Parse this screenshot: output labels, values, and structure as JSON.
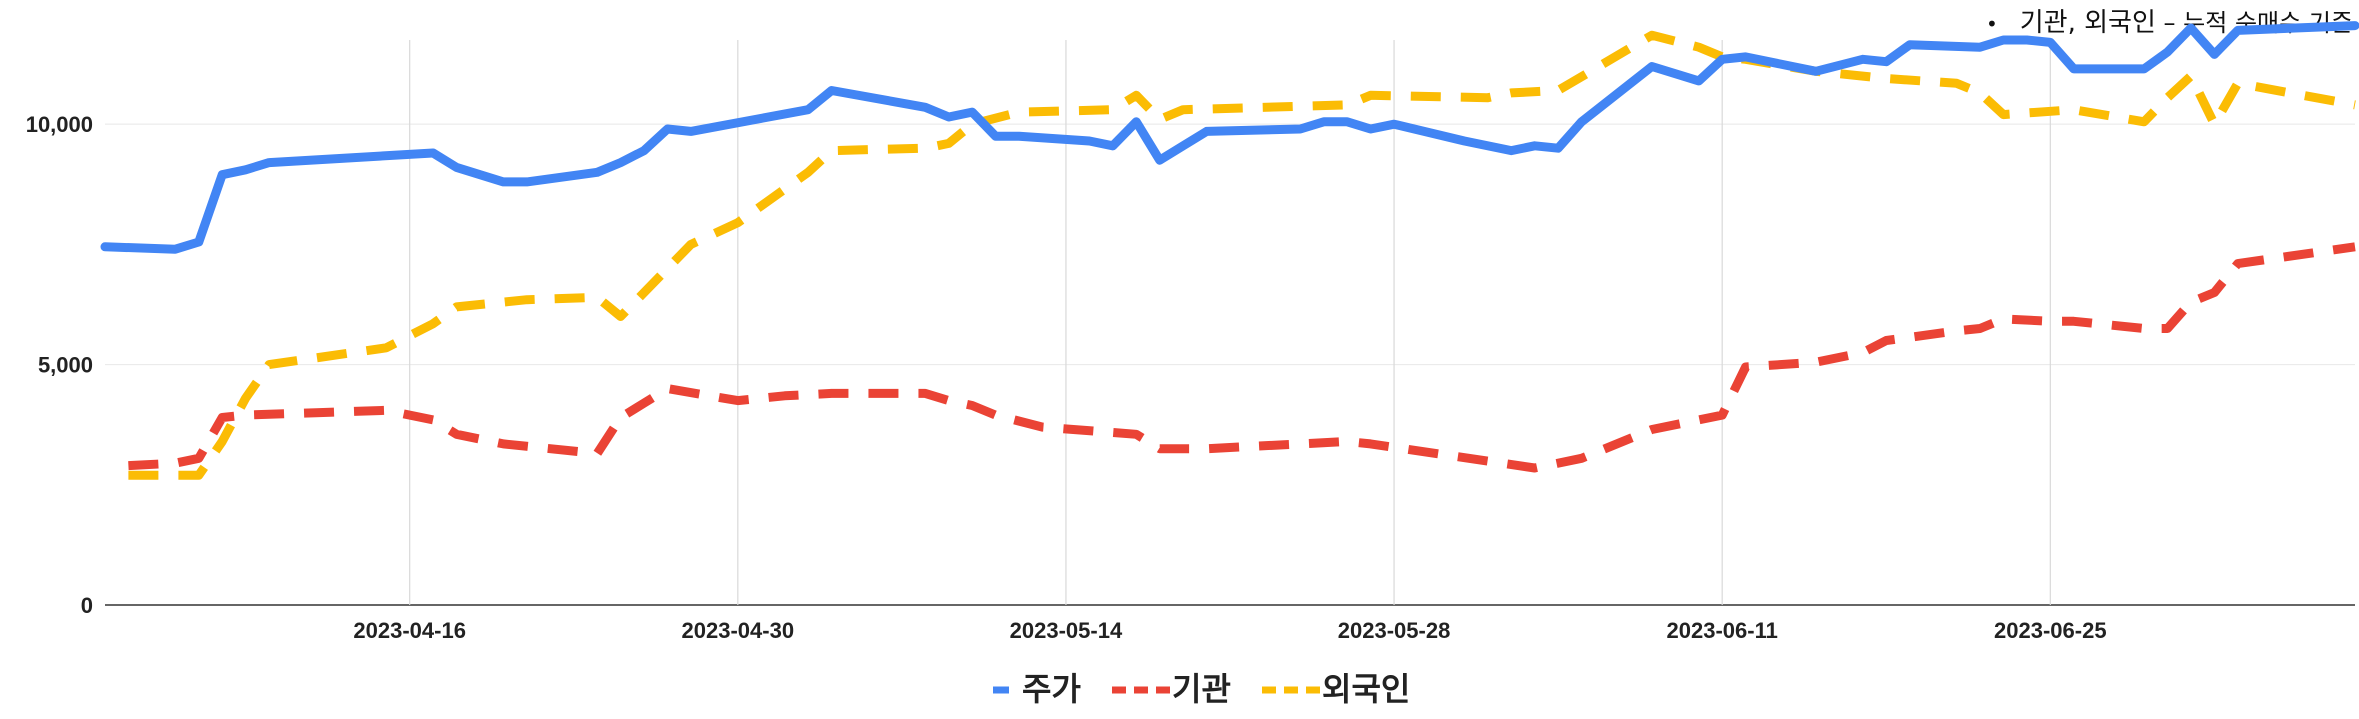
{
  "annotation": {
    "bullet": "•",
    "main": "기관, 외국인",
    "dash": " – ",
    "sub": "누적 순매수 기준"
  },
  "chart_data": {
    "type": "line",
    "ylim": [
      0,
      12000
    ],
    "yticks": [
      0,
      5000,
      10000
    ],
    "ytick_labels": [
      "0",
      "5,000",
      "10,000"
    ],
    "xlim": [
      "2023-04-03",
      "2023-07-08"
    ],
    "xticks": [
      "2023-04-16",
      "2023-04-30",
      "2023-05-14",
      "2023-05-28",
      "2023-06-11",
      "2023-06-25"
    ],
    "xtick_labels": [
      "2023-04-16",
      "2023-04-30",
      "2023-05-14",
      "2023-05-28",
      "2023-06-11",
      "2023-06-25"
    ],
    "grid": {
      "vertical": true,
      "horizontal": true
    },
    "legend_position": "bottom",
    "series": [
      {
        "name": "주가",
        "color": "#4285F4",
        "dash": "solid",
        "points": [
          [
            "2023-04-03",
            7450
          ],
          [
            "2023-04-06",
            7400
          ],
          [
            "2023-04-07",
            7550
          ],
          [
            "2023-04-08",
            8950
          ],
          [
            "2023-04-09",
            9050
          ],
          [
            "2023-04-10",
            9200
          ],
          [
            "2023-04-17",
            9400
          ],
          [
            "2023-04-18",
            9100
          ],
          [
            "2023-04-19",
            8950
          ],
          [
            "2023-04-20",
            8800
          ],
          [
            "2023-04-21",
            8800
          ],
          [
            "2023-04-24",
            9000
          ],
          [
            "2023-04-25",
            9200
          ],
          [
            "2023-04-26",
            9450
          ],
          [
            "2023-04-27",
            9900
          ],
          [
            "2023-04-28",
            9850
          ],
          [
            "2023-05-03",
            10300
          ],
          [
            "2023-05-04",
            10700
          ],
          [
            "2023-05-08",
            10350
          ],
          [
            "2023-05-09",
            10150
          ],
          [
            "2023-05-10",
            10250
          ],
          [
            "2023-05-11",
            9750
          ],
          [
            "2023-05-12",
            9750
          ],
          [
            "2023-05-15",
            9650
          ],
          [
            "2023-05-16",
            9550
          ],
          [
            "2023-05-17",
            10050
          ],
          [
            "2023-05-18",
            9250
          ],
          [
            "2023-05-19",
            9550
          ],
          [
            "2023-05-20",
            9850
          ],
          [
            "2023-05-24",
            9900
          ],
          [
            "2023-05-25",
            10050
          ],
          [
            "2023-05-26",
            10050
          ],
          [
            "2023-05-27",
            9900
          ],
          [
            "2023-05-28",
            10000
          ],
          [
            "2023-05-31",
            9650
          ],
          [
            "2023-06-02",
            9450
          ],
          [
            "2023-06-03",
            9550
          ],
          [
            "2023-06-04",
            9500
          ],
          [
            "2023-06-05",
            10050
          ],
          [
            "2023-06-08",
            11200
          ],
          [
            "2023-06-10",
            10900
          ],
          [
            "2023-06-11",
            11350
          ],
          [
            "2023-06-12",
            11400
          ],
          [
            "2023-06-15",
            11100
          ],
          [
            "2023-06-17",
            11350
          ],
          [
            "2023-06-18",
            11300
          ],
          [
            "2023-06-19",
            11650
          ],
          [
            "2023-06-22",
            11600
          ],
          [
            "2023-06-23",
            11750
          ],
          [
            "2023-06-24",
            11750
          ],
          [
            "2023-06-25",
            11700
          ],
          [
            "2023-06-26",
            11150
          ],
          [
            "2023-06-29",
            11150
          ],
          [
            "2023-06-30",
            11500
          ],
          [
            "2023-07-01",
            12000
          ],
          [
            "2023-07-02",
            11450
          ],
          [
            "2023-07-03",
            11950
          ],
          [
            "2023-07-08",
            12050
          ]
        ]
      },
      {
        "name": "기관",
        "color": "#EA4335",
        "dash": "dashed",
        "points": [
          [
            "2023-04-04",
            2900
          ],
          [
            "2023-04-06",
            2950
          ],
          [
            "2023-04-07",
            3050
          ],
          [
            "2023-04-08",
            3900
          ],
          [
            "2023-04-09",
            3950
          ],
          [
            "2023-04-12",
            4000
          ],
          [
            "2023-04-15",
            4050
          ],
          [
            "2023-04-17",
            3850
          ],
          [
            "2023-04-18",
            3550
          ],
          [
            "2023-04-19",
            3450
          ],
          [
            "2023-04-20",
            3350
          ],
          [
            "2023-04-24",
            3150
          ],
          [
            "2023-04-25",
            3900
          ],
          [
            "2023-04-26",
            4200
          ],
          [
            "2023-04-27",
            4500
          ],
          [
            "2023-04-30",
            4250
          ],
          [
            "2023-05-02",
            4350
          ],
          [
            "2023-05-04",
            4400
          ],
          [
            "2023-05-08",
            4400
          ],
          [
            "2023-05-09",
            4250
          ],
          [
            "2023-05-10",
            4150
          ],
          [
            "2023-05-11",
            3950
          ],
          [
            "2023-05-13",
            3700
          ],
          [
            "2023-05-17",
            3550
          ],
          [
            "2023-05-18",
            3250
          ],
          [
            "2023-05-20",
            3250
          ],
          [
            "2023-05-26",
            3400
          ],
          [
            "2023-05-27",
            3350
          ],
          [
            "2023-06-03",
            2850
          ],
          [
            "2023-06-05",
            3050
          ],
          [
            "2023-06-08",
            3650
          ],
          [
            "2023-06-10",
            3850
          ],
          [
            "2023-06-11",
            3950
          ],
          [
            "2023-06-12",
            4950
          ],
          [
            "2023-06-15",
            5050
          ],
          [
            "2023-06-17",
            5250
          ],
          [
            "2023-06-18",
            5500
          ],
          [
            "2023-06-21",
            5700
          ],
          [
            "2023-06-22",
            5750
          ],
          [
            "2023-06-23",
            5950
          ],
          [
            "2023-06-25",
            5900
          ],
          [
            "2023-06-26",
            5900
          ],
          [
            "2023-06-29",
            5750
          ],
          [
            "2023-06-30",
            5750
          ],
          [
            "2023-07-01",
            6300
          ],
          [
            "2023-07-02",
            6500
          ],
          [
            "2023-07-03",
            7100
          ],
          [
            "2023-07-08",
            7450
          ]
        ]
      },
      {
        "name": "외국인",
        "color": "#FBBC04",
        "dash": "dashed",
        "points": [
          [
            "2023-04-04",
            2700
          ],
          [
            "2023-04-07",
            2700
          ],
          [
            "2023-04-08",
            3400
          ],
          [
            "2023-04-09",
            4300
          ],
          [
            "2023-04-10",
            5000
          ],
          [
            "2023-04-15",
            5350
          ],
          [
            "2023-04-16",
            5600
          ],
          [
            "2023-04-17",
            5850
          ],
          [
            "2023-04-18",
            6200
          ],
          [
            "2023-04-21",
            6350
          ],
          [
            "2023-04-24",
            6400
          ],
          [
            "2023-04-25",
            6000
          ],
          [
            "2023-04-26",
            6500
          ],
          [
            "2023-04-28",
            7500
          ],
          [
            "2023-04-30",
            7950
          ],
          [
            "2023-05-03",
            9000
          ],
          [
            "2023-05-04",
            9450
          ],
          [
            "2023-05-08",
            9500
          ],
          [
            "2023-05-09",
            9600
          ],
          [
            "2023-05-10",
            10000
          ],
          [
            "2023-05-12",
            10250
          ],
          [
            "2023-05-16",
            10300
          ],
          [
            "2023-05-17",
            10600
          ],
          [
            "2023-05-18",
            10100
          ],
          [
            "2023-05-19",
            10300
          ],
          [
            "2023-05-26",
            10400
          ],
          [
            "2023-05-27",
            10600
          ],
          [
            "2023-06-01",
            10550
          ],
          [
            "2023-06-02",
            10650
          ],
          [
            "2023-06-04",
            10700
          ],
          [
            "2023-06-08",
            11850
          ],
          [
            "2023-06-10",
            11600
          ],
          [
            "2023-06-11",
            11400
          ],
          [
            "2023-06-12",
            11350
          ],
          [
            "2023-06-15",
            11100
          ],
          [
            "2023-06-17",
            11000
          ],
          [
            "2023-06-18",
            10950
          ],
          [
            "2023-06-21",
            10850
          ],
          [
            "2023-06-22",
            10650
          ],
          [
            "2023-06-23",
            10200
          ],
          [
            "2023-06-26",
            10300
          ],
          [
            "2023-06-29",
            10050
          ],
          [
            "2023-06-30",
            10550
          ],
          [
            "2023-07-01",
            11000
          ],
          [
            "2023-07-02",
            10000
          ],
          [
            "2023-07-03",
            10850
          ],
          [
            "2023-07-08",
            10400
          ]
        ]
      }
    ]
  }
}
